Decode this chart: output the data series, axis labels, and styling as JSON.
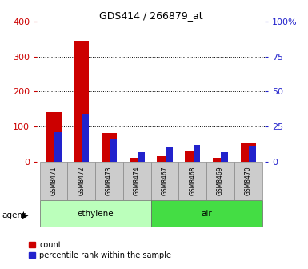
{
  "title": "GDS414 / 266879_at",
  "categories": [
    "GSM8471",
    "GSM8472",
    "GSM8473",
    "GSM8474",
    "GSM8467",
    "GSM8468",
    "GSM8469",
    "GSM8470"
  ],
  "count_values": [
    140,
    345,
    82,
    10,
    15,
    30,
    10,
    55
  ],
  "percentile_values": [
    21,
    34,
    16.5,
    6.5,
    10,
    12,
    6.5,
    11.5
  ],
  "left_ylim": [
    0,
    400
  ],
  "right_ylim": [
    0,
    100
  ],
  "left_yticks": [
    0,
    100,
    200,
    300,
    400
  ],
  "right_yticks": [
    0,
    25,
    50,
    75,
    100
  ],
  "right_yticklabels": [
    "0",
    "25",
    "50",
    "75",
    "100%"
  ],
  "bar_color_red": "#cc0000",
  "bar_color_blue": "#2222cc",
  "plot_bg": "#ffffff",
  "ethylene_color": "#bbffbb",
  "air_color": "#44dd44",
  "legend_count": "count",
  "legend_percentile": "percentile rank within the sample",
  "agent_label": "agent",
  "ethylene_label": "ethylene",
  "air_label": "air",
  "left_ylabel_color": "#cc0000",
  "right_ylabel_color": "#2222cc"
}
